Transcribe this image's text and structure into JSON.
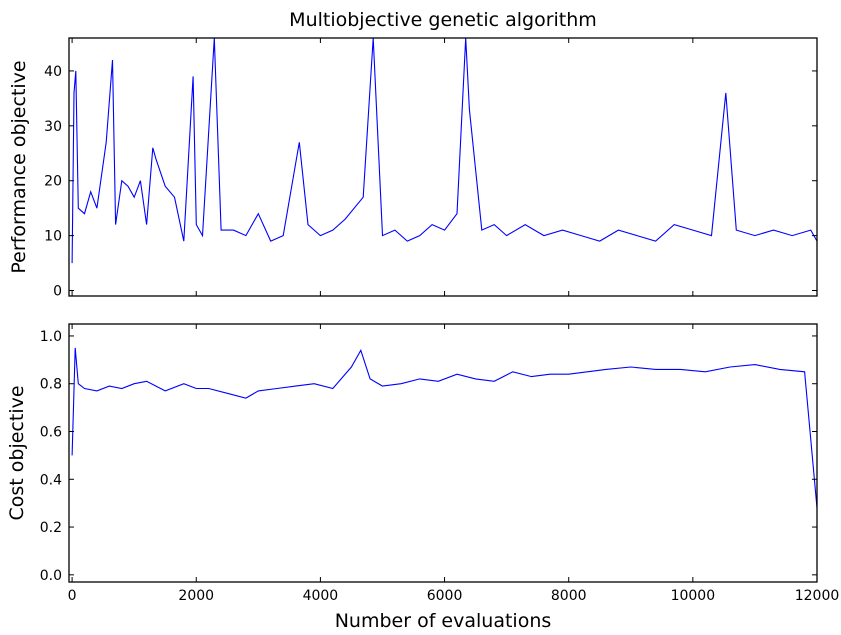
{
  "chart_data": [
    {
      "type": "line",
      "title": "Multiobjective genetic algorithm",
      "xlabel": "",
      "ylabel": "Performance objective",
      "xlim": [
        -50,
        12000
      ],
      "ylim": [
        -1,
        46
      ],
      "xticks": [
        0,
        2000,
        4000,
        6000,
        8000,
        10000,
        12000
      ],
      "yticks": [
        0,
        10,
        20,
        30,
        40
      ],
      "xtick_labels_visible": false,
      "grid": false,
      "color": "#0000ff",
      "series": [
        {
          "x": [
            0,
            30,
            60,
            100,
            200,
            300,
            400,
            550,
            650,
            700,
            800,
            900,
            1000,
            1100,
            1200,
            1300,
            1350,
            1500,
            1650,
            1800,
            1950,
            2000,
            2100,
            2290,
            2400,
            2600,
            2800,
            3000,
            3200,
            3400,
            3660,
            3800,
            4000,
            4200,
            4400,
            4690,
            4850,
            5000,
            5200,
            5400,
            5600,
            5800,
            6000,
            6200,
            6340,
            6400,
            6600,
            6800,
            7000,
            7300,
            7600,
            7900,
            8200,
            8500,
            8800,
            9100,
            9400,
            9700,
            10000,
            10300,
            10530,
            10700,
            11000,
            11300,
            11600,
            11900,
            12000
          ],
          "values": [
            5,
            36,
            40,
            15,
            14,
            18,
            15,
            27,
            42,
            12,
            20,
            19,
            17,
            20,
            12,
            26,
            24,
            19,
            17,
            9,
            39,
            12,
            10,
            46,
            11,
            11,
            10,
            14,
            9,
            10,
            27,
            12,
            10,
            11,
            13,
            17,
            46,
            10,
            11,
            9,
            10,
            12,
            11,
            14,
            46,
            33,
            11,
            12,
            10,
            12,
            10,
            11,
            10,
            9,
            11,
            10,
            9,
            12,
            11,
            10,
            36,
            11,
            10,
            11,
            10,
            11,
            9
          ]
        }
      ]
    },
    {
      "type": "line",
      "title": "",
      "xlabel": "Number of evaluations",
      "ylabel": "Cost objective",
      "xlim": [
        -50,
        12000
      ],
      "ylim": [
        -0.03,
        1.05
      ],
      "xticks": [
        0,
        2000,
        4000,
        6000,
        8000,
        10000,
        12000
      ],
      "yticks": [
        0.0,
        0.2,
        0.4,
        0.6,
        0.8,
        1.0
      ],
      "grid": false,
      "color": "#0000ff",
      "series": [
        {
          "x": [
            0,
            50,
            100,
            200,
            400,
            600,
            800,
            1000,
            1200,
            1500,
            1800,
            2000,
            2200,
            2500,
            2800,
            3000,
            3300,
            3600,
            3900,
            4200,
            4500,
            4650,
            4800,
            5000,
            5300,
            5600,
            5900,
            6200,
            6500,
            6800,
            7100,
            7400,
            7700,
            8000,
            8300,
            8600,
            9000,
            9400,
            9800,
            10200,
            10600,
            11000,
            11400,
            11800,
            12000
          ],
          "values": [
            0.5,
            0.95,
            0.8,
            0.78,
            0.77,
            0.79,
            0.78,
            0.8,
            0.81,
            0.77,
            0.8,
            0.78,
            0.78,
            0.76,
            0.74,
            0.77,
            0.78,
            0.79,
            0.8,
            0.78,
            0.87,
            0.94,
            0.82,
            0.79,
            0.8,
            0.82,
            0.81,
            0.84,
            0.82,
            0.81,
            0.85,
            0.83,
            0.84,
            0.84,
            0.85,
            0.86,
            0.87,
            0.86,
            0.86,
            0.85,
            0.87,
            0.88,
            0.86,
            0.85,
            0.28
          ]
        }
      ]
    }
  ]
}
